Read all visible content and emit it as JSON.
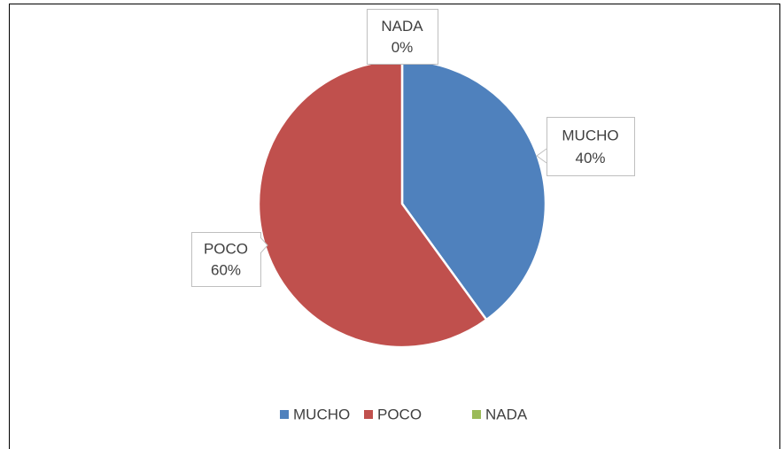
{
  "chart_data": {
    "type": "pie",
    "categories": [
      "MUCHO",
      "POCO",
      "NADA"
    ],
    "values": [
      40,
      60,
      0
    ],
    "value_labels": [
      "40%",
      "60%",
      "0%"
    ],
    "colors": [
      "#4f81bd",
      "#c0504d",
      "#9bbb59"
    ],
    "legend": "bottom"
  }
}
